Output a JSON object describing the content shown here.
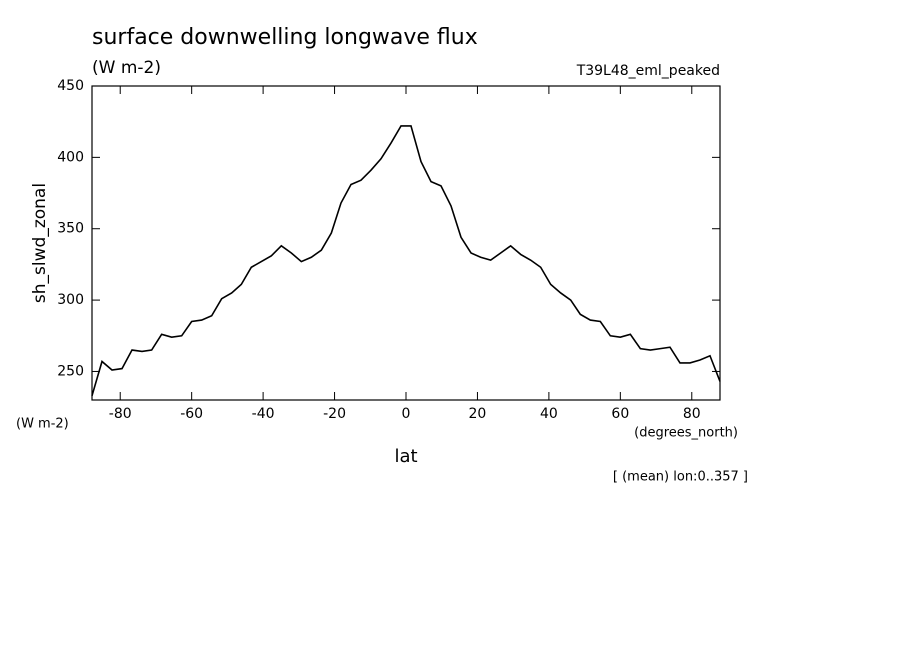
{
  "chart_data": {
    "type": "line",
    "title": "surface downwelling longwave flux",
    "units": "(W m-2)",
    "dataset": "T39L48_eml_peaked",
    "y_label": "sh_slwd_zonal",
    "y_units": "(W m-2)",
    "x_units": "(degrees_north)",
    "x_label": "lat",
    "note": "[ (mean) lon:0..357 ]",
    "x": [
      -87.9,
      -85.1,
      -82.3,
      -79.5,
      -76.7,
      -73.9,
      -71.2,
      -68.4,
      -65.6,
      -62.8,
      -60.0,
      -57.2,
      -54.4,
      -51.6,
      -48.8,
      -46.1,
      -43.3,
      -40.5,
      -37.7,
      -34.9,
      -32.1,
      -29.3,
      -26.5,
      -23.7,
      -20.9,
      -18.2,
      -15.4,
      -12.6,
      -9.8,
      -7.0,
      -4.2,
      -1.4,
      1.4,
      4.2,
      7.0,
      9.8,
      12.6,
      15.4,
      18.2,
      20.9,
      23.7,
      26.5,
      29.3,
      32.1,
      34.9,
      37.7,
      40.5,
      43.3,
      46.1,
      48.8,
      51.6,
      54.4,
      57.2,
      60.0,
      62.8,
      65.6,
      68.4,
      71.2,
      73.9,
      76.7,
      79.5,
      82.3,
      85.1,
      87.9
    ],
    "series": [
      {
        "name": "sh_slwd_zonal",
        "color": "#000000",
        "values": [
          233,
          257,
          251,
          252,
          265,
          264,
          265,
          276,
          274,
          275,
          285,
          286,
          289,
          301,
          305,
          311,
          323,
          327,
          331,
          338,
          333,
          327,
          330,
          335,
          347,
          368,
          381,
          384,
          391,
          399,
          410,
          422,
          422,
          397,
          383,
          380,
          366,
          344,
          333,
          330,
          328,
          333,
          338,
          332,
          328,
          323,
          311,
          305,
          300,
          290,
          286,
          285,
          275,
          274,
          276,
          266,
          265,
          266,
          267,
          256,
          256,
          258,
          261,
          243
        ]
      }
    ],
    "xlim": [
      -87.9,
      87.9
    ],
    "xticks": [
      -80,
      -60,
      -40,
      -20,
      0,
      20,
      40,
      60,
      80
    ],
    "ylim": [
      230,
      450
    ],
    "yticks": [
      250,
      300,
      350,
      400,
      450
    ]
  }
}
